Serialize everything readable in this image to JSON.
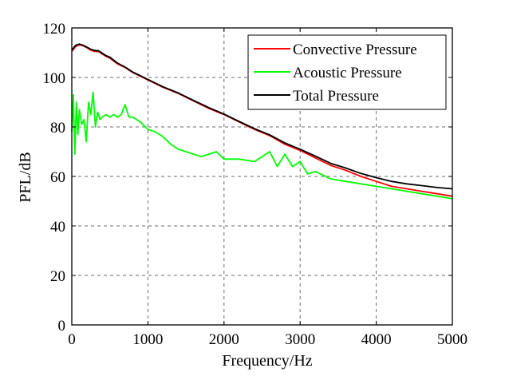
{
  "chart_data": {
    "type": "line",
    "title": "",
    "xlabel": "Frequency/Hz",
    "ylabel": "PFL/dB",
    "xlim": [
      0,
      5000
    ],
    "ylim": [
      0,
      120
    ],
    "xticks": [
      0,
      1000,
      2000,
      3000,
      4000,
      5000
    ],
    "yticks": [
      0,
      20,
      40,
      60,
      80,
      100,
      120
    ],
    "xtick_labels": [
      "0",
      "1000",
      "2000",
      "3000",
      "4000",
      "5000"
    ],
    "ytick_labels": [
      "0",
      "20",
      "40",
      "60",
      "80",
      "100",
      "120"
    ],
    "grid": true,
    "legend_position": "top-right",
    "series": [
      {
        "name": "Convective Pressure",
        "color": "#ff0000",
        "x": [
          0,
          50,
          100,
          150,
          200,
          250,
          300,
          350,
          400,
          450,
          500,
          600,
          700,
          800,
          900,
          1000,
          1200,
          1400,
          1600,
          1800,
          2000,
          2200,
          2400,
          2600,
          2800,
          3000,
          3200,
          3400,
          3600,
          3800,
          4000,
          4200,
          4400,
          4600,
          4800,
          5000
        ],
        "values": [
          110.5,
          112.5,
          113.2,
          112.8,
          112,
          111,
          110.5,
          110.5,
          109.5,
          108.5,
          107.8,
          105.5,
          104,
          102,
          100.5,
          99,
          96,
          93.5,
          90.5,
          87.5,
          85,
          82,
          79,
          76.5,
          73,
          70.5,
          67.5,
          64.5,
          62.5,
          60,
          58,
          56,
          55,
          54,
          53,
          52
        ]
      },
      {
        "name": "Acoustic Pressure",
        "color": "#00ff00",
        "x": [
          0,
          20,
          40,
          60,
          80,
          100,
          130,
          160,
          190,
          220,
          250,
          280,
          310,
          340,
          370,
          400,
          450,
          500,
          550,
          600,
          650,
          700,
          750,
          800,
          900,
          1000,
          1100,
          1200,
          1300,
          1400,
          1500,
          1600,
          1700,
          1800,
          1900,
          2000,
          2200,
          2400,
          2600,
          2700,
          2800,
          2900,
          3000,
          3100,
          3200,
          3400,
          3600,
          3800,
          4000,
          4200,
          4400,
          4600,
          4800,
          5000
        ],
        "values": [
          78,
          93,
          69,
          90,
          77,
          87,
          81,
          83,
          74,
          90,
          85,
          94,
          80,
          86,
          83,
          84,
          85,
          84,
          85,
          84,
          85,
          89,
          84,
          84,
          82,
          79,
          78,
          76,
          73,
          71,
          70,
          69,
          68,
          69,
          70,
          67,
          67,
          66,
          70,
          64,
          69,
          64,
          66,
          61,
          62,
          59,
          58,
          57,
          56,
          55,
          54,
          53,
          52,
          51
        ]
      },
      {
        "name": "Total Pressure",
        "color": "#000000",
        "x": [
          0,
          50,
          100,
          150,
          200,
          250,
          300,
          350,
          400,
          450,
          500,
          600,
          700,
          800,
          900,
          1000,
          1200,
          1400,
          1600,
          1800,
          2000,
          2200,
          2400,
          2600,
          2800,
          3000,
          3200,
          3400,
          3600,
          3800,
          4000,
          4200,
          4400,
          4600,
          4800,
          5000
        ],
        "values": [
          111,
          113,
          113.5,
          113,
          112.2,
          111.4,
          110.9,
          110.8,
          109.8,
          108.8,
          108.2,
          105.8,
          104.2,
          102.2,
          100.7,
          99.2,
          96.2,
          93.7,
          90.7,
          87.8,
          85.2,
          82.2,
          79.3,
          76.8,
          73.5,
          71,
          68.2,
          65.3,
          63.4,
          61.2,
          59.5,
          58,
          57,
          56.3,
          55.5,
          55
        ]
      }
    ]
  }
}
